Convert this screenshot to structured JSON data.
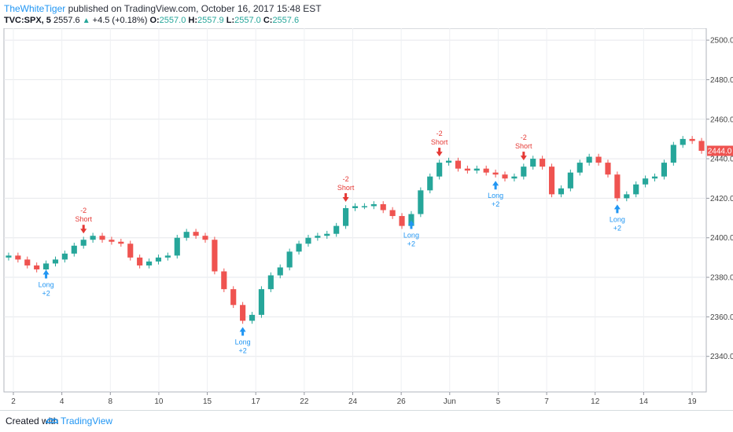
{
  "header": {
    "author": "TheWhiteTiger",
    "published": " published on TradingView.com, October 16, 2017 15:48 EST",
    "symbol": "TVC:SPX, 5",
    "price": "2557.6",
    "change": "+4.5 (+0.18%)",
    "o_label": "O:",
    "o": "2557.0",
    "h_label": "H:",
    "h": "2557.9",
    "l_label": "L:",
    "l": "2557.0",
    "c_label": "C:",
    "c": "2557.6"
  },
  "footer": {
    "created_with": "Created with",
    "brand": "TradingView"
  },
  "colors": {
    "up": "#26a69a",
    "down": "#ef5350",
    "long": "#2196f3",
    "short": "#e53935",
    "price_tag": "#ef5350"
  },
  "chart_data": {
    "type": "candlestick",
    "y_ticks": [
      2340,
      2360,
      2380,
      2400,
      2420,
      2440,
      2460,
      2480,
      2500
    ],
    "ylim": [
      2322,
      2506
    ],
    "x_tick_labels": [
      "2",
      "4",
      "8",
      "10",
      "15",
      "17",
      "22",
      "24",
      "26",
      "Jun",
      "5",
      "7",
      "12",
      "14",
      "19"
    ],
    "last_price": "2444.0",
    "price_path": [
      [
        0,
        2391
      ],
      [
        1,
        2389
      ],
      [
        2,
        2386
      ],
      [
        3,
        2384
      ],
      [
        4,
        2387
      ],
      [
        5,
        2389
      ],
      [
        6,
        2392
      ],
      [
        7,
        2396
      ],
      [
        8,
        2399
      ],
      [
        9,
        2401
      ],
      [
        10,
        2399
      ],
      [
        11,
        2398
      ],
      [
        12,
        2397
      ],
      [
        13,
        2390
      ],
      [
        14,
        2386
      ],
      [
        15,
        2388
      ],
      [
        16,
        2390
      ],
      [
        17,
        2391
      ],
      [
        18,
        2400
      ],
      [
        19,
        2403
      ],
      [
        20,
        2401
      ],
      [
        21,
        2399
      ],
      [
        22,
        2383
      ],
      [
        23,
        2374
      ],
      [
        24,
        2366
      ],
      [
        25,
        2358
      ],
      [
        26,
        2361
      ],
      [
        27,
        2374
      ],
      [
        28,
        2381
      ],
      [
        29,
        2385
      ],
      [
        30,
        2393
      ],
      [
        31,
        2397
      ],
      [
        32,
        2400
      ],
      [
        33,
        2401
      ],
      [
        34,
        2402
      ],
      [
        35,
        2406
      ],
      [
        36,
        2415
      ],
      [
        37,
        2416
      ],
      [
        38,
        2416
      ],
      [
        39,
        2417
      ],
      [
        40,
        2414
      ],
      [
        41,
        2411
      ],
      [
        42,
        2406
      ],
      [
        43,
        2412
      ],
      [
        44,
        2424
      ],
      [
        45,
        2431
      ],
      [
        46,
        2438
      ],
      [
        47,
        2439
      ],
      [
        48,
        2435
      ],
      [
        49,
        2434
      ],
      [
        50,
        2435
      ],
      [
        51,
        2433
      ],
      [
        52,
        2432
      ],
      [
        53,
        2430
      ],
      [
        54,
        2431
      ],
      [
        55,
        2436
      ],
      [
        56,
        2440
      ],
      [
        57,
        2436
      ],
      [
        58,
        2422
      ],
      [
        59,
        2425
      ],
      [
        60,
        2433
      ],
      [
        61,
        2438
      ],
      [
        62,
        2441
      ],
      [
        63,
        2438
      ],
      [
        64,
        2432
      ],
      [
        65,
        2420
      ],
      [
        66,
        2422
      ],
      [
        67,
        2427
      ],
      [
        68,
        2430
      ],
      [
        69,
        2431
      ],
      [
        70,
        2438
      ],
      [
        71,
        2447
      ],
      [
        72,
        2450
      ],
      [
        73,
        2449
      ],
      [
        74,
        2444
      ]
    ],
    "signals": [
      {
        "kind": "long",
        "label": "Long",
        "value": "+2",
        "bar": 4
      },
      {
        "kind": "short",
        "label": "Short",
        "value": "-2",
        "bar": 8
      },
      {
        "kind": "long",
        "label": "Long",
        "value": "+2",
        "bar": 25
      },
      {
        "kind": "short",
        "label": "Short",
        "value": "-2",
        "bar": 36
      },
      {
        "kind": "long",
        "label": "Long",
        "value": "+2",
        "bar": 43
      },
      {
        "kind": "short",
        "label": "Short",
        "value": "-2",
        "bar": 46
      },
      {
        "kind": "long",
        "label": "Long",
        "value": "+2",
        "bar": 52
      },
      {
        "kind": "short",
        "label": "Short",
        "value": "-2",
        "bar": 55
      },
      {
        "kind": "long",
        "label": "Long",
        "value": "+2",
        "bar": 65
      }
    ]
  }
}
